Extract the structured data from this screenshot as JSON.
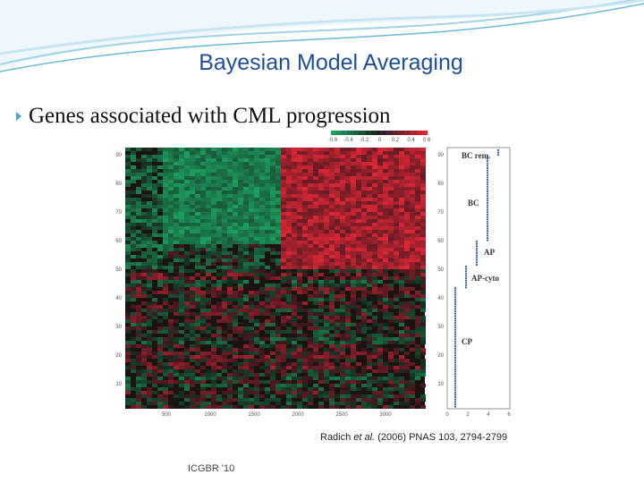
{
  "header": {
    "title": "Bayesian Model Averaging"
  },
  "bullet": "Genes associated with CML progression",
  "figure": {
    "colorbar_labels": [
      "-0.6",
      "-0.4",
      "-0.2",
      "0",
      "0.2",
      "0.4",
      "0.6"
    ],
    "heatmap_x_labels": [
      "500",
      "1000",
      "1500",
      "2000",
      "2500",
      "3000"
    ],
    "heatmap_y_labels": [
      "90",
      "80",
      "70",
      "60",
      "50",
      "40",
      "30",
      "20",
      "10"
    ],
    "panel_y_labels": [
      "90",
      "80",
      "70",
      "60",
      "50",
      "40",
      "30",
      "20",
      "10"
    ],
    "panel_x_labels": [
      "0",
      "2",
      "4",
      "6"
    ],
    "phase_labels": [
      "BC rem.",
      "BC",
      "AP",
      "AP-cyto",
      "CP"
    ],
    "citation_author": "Radich",
    "citation_etal": "et al.",
    "citation_rest": "(2006) PNAS 103, 2794-2799"
  },
  "footer": "ICGBR '10"
}
